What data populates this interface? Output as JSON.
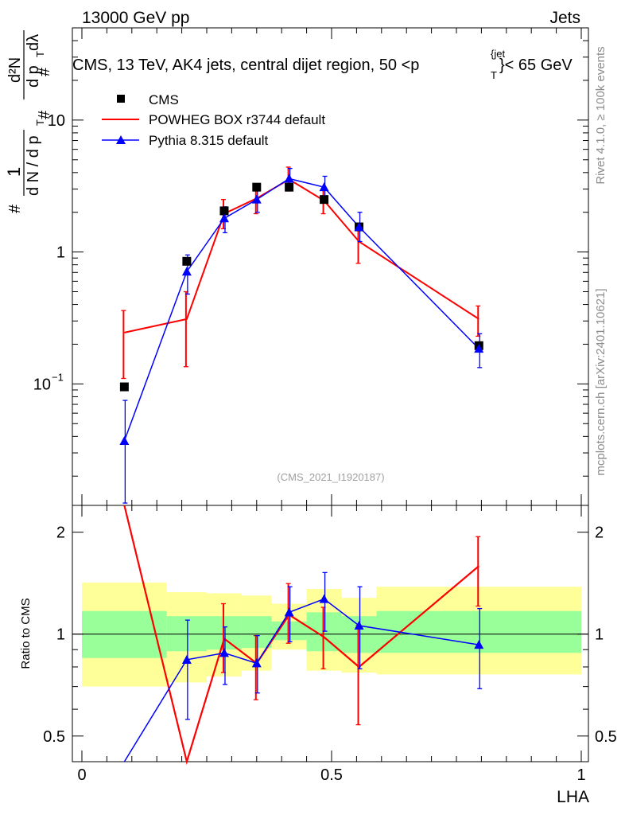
{
  "header": {
    "left": "13000 GeV pp",
    "right": "Jets"
  },
  "side_labels": {
    "rivet": "Rivet 4.1.0, ≥ 100k events",
    "mcplots": "mcplots.cern.ch [arXiv:2401.10621]"
  },
  "watermark": "(CMS_2021_I1920187)",
  "chart_data": [
    {
      "type": "line",
      "panel": "main",
      "title": "CMS, 13 TeV, AK4 jets, central dijet region, 50 < p_T^{jet} < 65 GeV",
      "title_parts": {
        "prefix": "CMS, 13 TeV, AK4 jets, central dijet region, 50 <p",
        "sup": "{jet",
        "sub": "T",
        "suffix": "}< 65 GeV"
      },
      "ylabel": "1/(dN/dp_T) · d²N/(dp_T dλ)",
      "ylabel_parts": {
        "hash1": "#",
        "one": "1",
        "dn": "d N / d p",
        "t1": "T",
        "hash2": "#",
        "d2n": "d²N",
        "dpt": "d p",
        "t2": "T",
        "dl": "dλ",
        "hash3": "#"
      },
      "yscale": "log",
      "ylim": [
        0.012,
        50
      ],
      "xlim": [
        -0.02,
        1.01
      ],
      "y_ticks": [
        {
          "value": 0.1,
          "base": "10",
          "exp": "−1"
        },
        {
          "value": 1,
          "label": "1"
        },
        {
          "value": 10,
          "label": "10"
        }
      ],
      "legend": {
        "position": "top-left",
        "entries": [
          "CMS",
          "POWHEG BOX r3744 default",
          "Pythia 8.315 default"
        ]
      },
      "x": [
        0.085,
        0.21,
        0.285,
        0.35,
        0.415,
        0.485,
        0.555,
        0.795
      ],
      "series": [
        {
          "name": "CMS",
          "style": "markers",
          "color": "#000000",
          "values": [
            0.095,
            0.85,
            2.05,
            3.1,
            3.1,
            2.5,
            1.55,
            0.195
          ]
        },
        {
          "name": "POWHEG BOX r3744 default",
          "style": "line",
          "color": "#ff0000",
          "values": [
            0.245,
            0.31,
            1.95,
            2.55,
            3.55,
            2.45,
            1.2,
            0.31
          ],
          "err_low": [
            0.11,
            0.135,
            1.5,
            1.95,
            2.9,
            1.95,
            0.82,
            0.23
          ],
          "err_high": [
            0.36,
            0.5,
            2.5,
            3.2,
            4.4,
            3.0,
            1.6,
            0.39
          ]
        },
        {
          "name": "Pythia 8.315 default",
          "style": "line+triangles",
          "color": "#0000ff",
          "values": [
            0.037,
            0.71,
            1.8,
            2.5,
            3.6,
            3.1,
            1.55,
            0.185
          ],
          "err_low": [
            0.0125,
            0.48,
            1.4,
            2.0,
            3.0,
            2.5,
            1.2,
            0.133
          ],
          "err_high": [
            0.075,
            0.95,
            2.2,
            3.0,
            4.3,
            3.75,
            2.0,
            0.24
          ]
        }
      ]
    },
    {
      "type": "line",
      "panel": "ratio",
      "xlabel": "LHA",
      "ylabel": "Ratio to CMS",
      "ylim": [
        0.42,
        2.4
      ],
      "xlim": [
        -0.02,
        1.01
      ],
      "x_ticks": [
        0,
        0.5,
        1
      ],
      "x_tick_labels": [
        "0",
        "0.5",
        "1"
      ],
      "y_ticks": [
        0.5,
        1,
        2
      ],
      "y_tick_labels": [
        "0.5",
        "1",
        "2"
      ],
      "bands": {
        "bin_edges": [
          0,
          0.17,
          0.25,
          0.32,
          0.38,
          0.45,
          0.52,
          0.59,
          1.0
        ],
        "yellow_low": [
          0.7,
          0.72,
          0.75,
          0.78,
          0.9,
          0.78,
          0.77,
          0.76
        ],
        "yellow_high": [
          1.42,
          1.33,
          1.32,
          1.3,
          1.23,
          1.36,
          1.28,
          1.38
        ],
        "green_low": [
          0.85,
          0.89,
          0.9,
          0.91,
          0.96,
          0.89,
          0.88,
          0.88
        ],
        "green_high": [
          1.17,
          1.13,
          1.13,
          1.13,
          1.09,
          1.16,
          1.13,
          1.17
        ],
        "colors": {
          "yellow": "#ffff99",
          "green": "#99ff99"
        }
      },
      "reference_line": 1,
      "x": [
        0.085,
        0.21,
        0.285,
        0.35,
        0.415,
        0.485,
        0.555,
        0.795
      ],
      "series": [
        {
          "name": "POWHEG BOX r3744 default",
          "color": "#ff0000",
          "values": [
            2.6,
            0.37,
            0.97,
            0.82,
            1.14,
            0.98,
            0.8,
            1.59
          ],
          "err_low": [
            null,
            null,
            0.77,
            0.64,
            0.94,
            0.79,
            0.54,
            1.21
          ],
          "err_high": [
            null,
            null,
            1.23,
            0.99,
            1.41,
            1.2,
            1.06,
            1.94
          ]
        },
        {
          "name": "Pythia 8.315 default",
          "color": "#0000ff",
          "values": [
            0.39,
            0.84,
            0.88,
            0.82,
            1.16,
            1.27,
            1.06,
            0.93
          ],
          "err_low": [
            null,
            0.56,
            0.71,
            0.67,
            0.95,
            1.02,
            0.79,
            0.69
          ],
          "err_high": [
            null,
            1.1,
            1.05,
            0.99,
            1.38,
            1.52,
            1.38,
            1.19
          ]
        }
      ]
    }
  ]
}
